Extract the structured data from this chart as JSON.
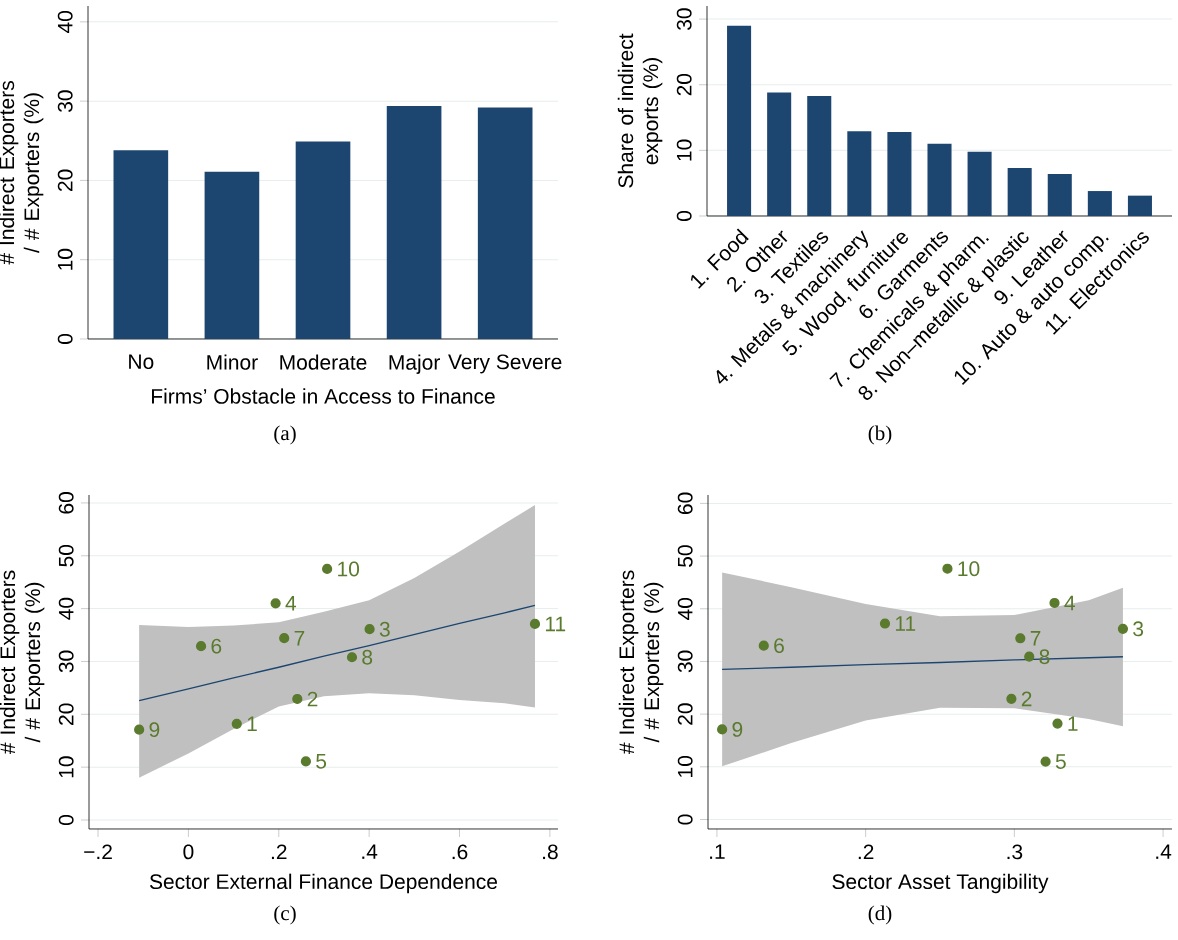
{
  "chart_data": [
    {
      "type": "bar",
      "categories": [
        "No",
        "Minor",
        "Moderate",
        "Major",
        "Very Severe"
      ],
      "values": [
        23.8,
        21.1,
        24.9,
        29.4,
        29.2
      ],
      "color": "#1c4670",
      "xlabel": "Firms’ Obstacle in Access to Finance",
      "ylabel": "# Indirect Exporters / # Exporters (%)",
      "ylim": [
        0,
        42
      ],
      "yticks": [
        0,
        10,
        20,
        30,
        40
      ],
      "grid": "y",
      "annotations": [
        "(a)"
      ]
    },
    {
      "type": "bar",
      "categories": [
        "1. Food",
        "2. Other",
        "3. Textiles",
        "4. Metals & machinery",
        "5. Wood, furniture",
        "6. Garments",
        "7. Chemicals & pharm.",
        "8. Non–metallic & plastic",
        "9. Leather",
        "10. Auto & auto comp.",
        "11. Electronics"
      ],
      "values": [
        29.0,
        18.8,
        18.3,
        12.9,
        12.8,
        11.0,
        9.8,
        7.3,
        6.4,
        3.8,
        3.1
      ],
      "color": "#1c4670",
      "ylabel": "Share of indirect exports (%)",
      "ylim": [
        0,
        32
      ],
      "yticks": [
        0,
        10,
        20,
        30
      ],
      "grid": "y",
      "annotations": [
        "(b)"
      ]
    },
    {
      "type": "scatter",
      "xlabel": "Sector External Finance Dependence",
      "ylabel": "# Indirect Exporters / # Exporters (%)",
      "xlim": [
        -0.22,
        0.818
      ],
      "ylim": [
        -1.7,
        61.5
      ],
      "xticks": [
        {
          "value": -0.2,
          "label": "−.2"
        },
        0,
        {
          "value": 0.2,
          "label": ".2"
        },
        {
          "value": 0.4,
          "label": ".4"
        },
        {
          "value": 0.6,
          "label": ".6"
        },
        {
          "value": 0.8,
          "label": ".8"
        }
      ],
      "yticks": [
        0,
        10,
        20,
        30,
        40,
        50,
        60
      ],
      "grid": "y",
      "series": [
        {
          "type": "scatter",
          "color": "#5a7a2e",
          "marker": "circle",
          "x": [
            0.107,
            0.241,
            0.401,
            0.193,
            0.26,
            0.028,
            0.212,
            0.362,
            -0.109,
            0.307,
            0.767
          ],
          "values": [
            18.2,
            22.9,
            36.1,
            41.0,
            11.1,
            32.9,
            34.4,
            30.8,
            17.1,
            47.5,
            37.1
          ]
        },
        {
          "type": "line",
          "color": "#1c4670",
          "x": [
            -0.109,
            0,
            0.1,
            0.2,
            0.3,
            0.4,
            0.5,
            0.6,
            0.7,
            0.767
          ],
          "values": [
            22.6,
            24.8,
            26.9,
            28.9,
            31.0,
            33.0,
            35.1,
            37.2,
            39.2,
            40.6
          ],
          "lower": [
            8.0,
            12.6,
            17.2,
            21.5,
            23.4,
            24.0,
            23.6,
            22.7,
            22.1,
            21.3
          ],
          "upper": [
            36.9,
            36.5,
            36.8,
            37.4,
            39.4,
            41.6,
            45.8,
            50.8,
            56.1,
            59.6
          ]
        }
      ],
      "annotations": [
        {
          "text": "1",
          "x": 0.107,
          "y": 18.2
        },
        {
          "text": "2",
          "x": 0.241,
          "y": 22.9
        },
        {
          "text": "3",
          "x": 0.401,
          "y": 36.1
        },
        {
          "text": "4",
          "x": 0.193,
          "y": 41.0
        },
        {
          "text": "5",
          "x": 0.26,
          "y": 11.1
        },
        {
          "text": "6",
          "x": 0.028,
          "y": 32.9
        },
        {
          "text": "7",
          "x": 0.212,
          "y": 34.4
        },
        {
          "text": "8",
          "x": 0.362,
          "y": 30.8
        },
        {
          "text": "9",
          "x": -0.109,
          "y": 17.1
        },
        {
          "text": "10",
          "x": 0.307,
          "y": 47.5
        },
        {
          "text": "11",
          "x": 0.767,
          "y": 37.1
        },
        "(c)"
      ]
    },
    {
      "type": "scatter",
      "xlabel": "Sector Asset Tangibility",
      "ylabel": "# Indirect Exporters / # Exporters (%)",
      "xlim": [
        0.094,
        0.406
      ],
      "ylim": [
        -1.8,
        61.6
      ],
      "xticks": [
        {
          "value": 0.1,
          "label": ".1"
        },
        {
          "value": 0.2,
          "label": ".2"
        },
        {
          "value": 0.3,
          "label": ".3"
        },
        {
          "value": 0.4,
          "label": ".4"
        }
      ],
      "yticks": [
        0,
        10,
        20,
        30,
        40,
        50,
        60
      ],
      "grid": "y",
      "series": [
        {
          "type": "scatter",
          "color": "#5a7a2e",
          "marker": "circle",
          "x": [
            0.329,
            0.298,
            0.373,
            0.327,
            0.321,
            0.1315,
            0.304,
            0.31,
            0.1035,
            0.255,
            0.213
          ],
          "values": [
            18.2,
            22.9,
            36.2,
            41.1,
            11.0,
            33.0,
            34.4,
            30.9,
            17.1,
            47.6,
            37.2
          ]
        },
        {
          "type": "line",
          "color": "#1c4670",
          "x": [
            0.1035,
            0.15,
            0.2,
            0.25,
            0.3,
            0.35,
            0.373
          ],
          "values": [
            28.5,
            28.9,
            29.4,
            29.8,
            30.3,
            30.7,
            30.9
          ],
          "lower": [
            10.1,
            14.5,
            18.8,
            21.2,
            21.1,
            19.1,
            17.7
          ],
          "upper": [
            46.9,
            44.1,
            40.9,
            38.6,
            38.8,
            41.6,
            44.0
          ]
        }
      ],
      "annotations": [
        {
          "text": "1",
          "x": 0.329,
          "y": 18.2
        },
        {
          "text": "2",
          "x": 0.298,
          "y": 22.9
        },
        {
          "text": "3",
          "x": 0.373,
          "y": 36.2
        },
        {
          "text": "4",
          "x": 0.327,
          "y": 41.1
        },
        {
          "text": "5",
          "x": 0.321,
          "y": 11.0
        },
        {
          "text": "6",
          "x": 0.1315,
          "y": 33.0
        },
        {
          "text": "7",
          "x": 0.304,
          "y": 34.4
        },
        {
          "text": "8",
          "x": 0.31,
          "y": 30.9
        },
        {
          "text": "9",
          "x": 0.1035,
          "y": 17.1
        },
        {
          "text": "10",
          "x": 0.255,
          "y": 47.6
        },
        {
          "text": "11",
          "x": 0.213,
          "y": 37.2
        },
        "(d)"
      ]
    }
  ]
}
